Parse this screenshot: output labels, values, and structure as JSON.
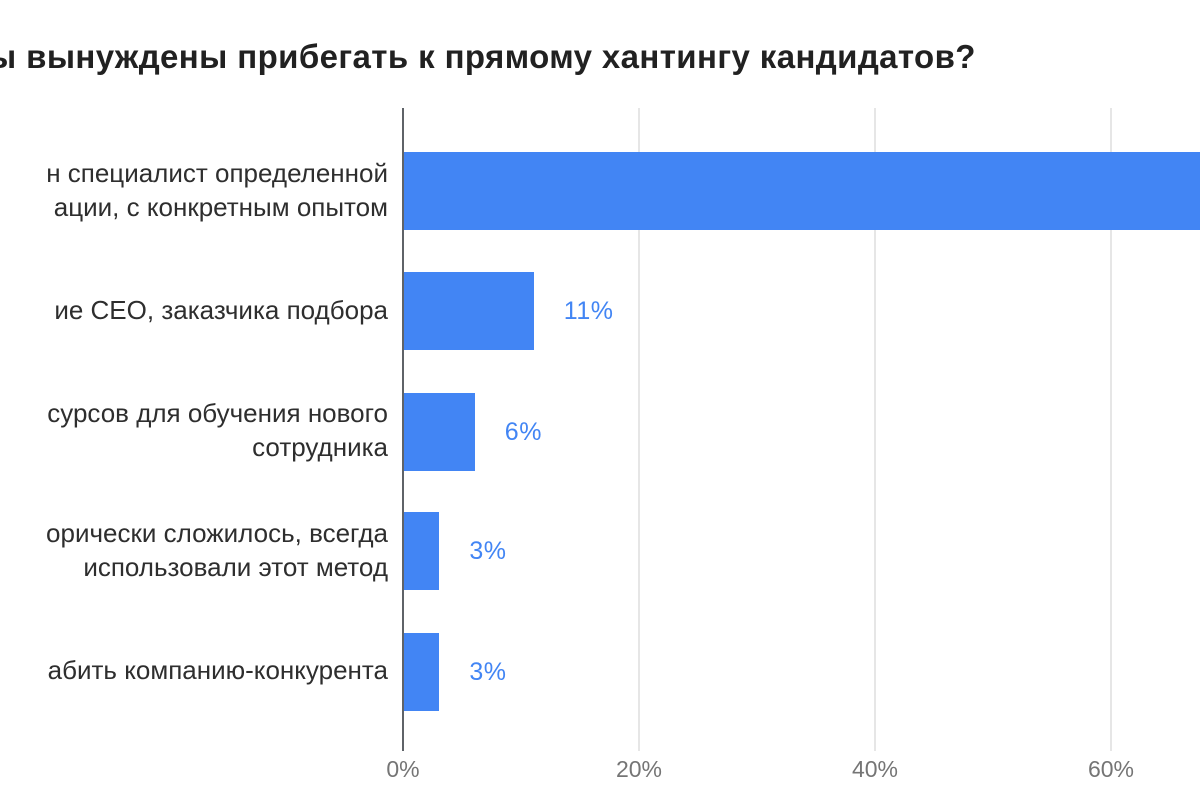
{
  "chart_data": {
    "type": "bar",
    "orientation": "horizontal",
    "title": "ы вынуждены прибегать к прямому хантингу кандидатов?",
    "categories": [
      "н специалист определенной\nации, с конкретным опытом",
      "ие CEO, заказчика подбора",
      "сурсов для обучения нового\nсотрудника",
      "орически сложилось, всегда\nиспользовали этот метод",
      "абить компанию-конкурента"
    ],
    "values": [
      77,
      11,
      6,
      3,
      3
    ],
    "value_labels": [
      "",
      "11%",
      "6%",
      "3%",
      "3%"
    ],
    "x_ticks": [
      "0%",
      "20%",
      "40%",
      "60%"
    ],
    "xlabel": "",
    "ylabel": "",
    "xlim": [
      0,
      67.5
    ],
    "grid": true,
    "legend": "none",
    "first_bar_clipped_at_right_edge": true,
    "colors": {
      "bar": "#4285f4",
      "annotation": "#4285f4",
      "title": "#212121",
      "category_label": "#2e2e2e",
      "tick_label": "#757575",
      "gridline": "#e6e6e6",
      "axis_line": "#5f6368",
      "background": "#ffffff"
    }
  }
}
